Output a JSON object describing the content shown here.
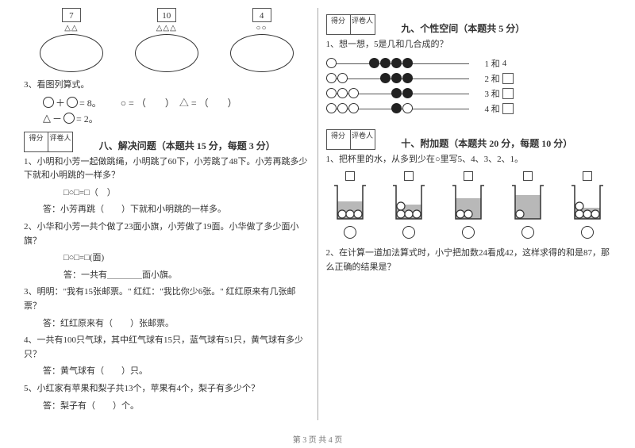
{
  "footer": {
    "text": "第 3 页 共 4 页"
  },
  "scorebox": {
    "col1": "得分",
    "col2": "评卷人"
  },
  "left": {
    "ovals": [
      {
        "num": "7",
        "shapes": "△△"
      },
      {
        "num": "10",
        "shapes": "△△△"
      },
      {
        "num": "4",
        "shapes": "○○"
      }
    ],
    "q3": {
      "label": "3、看图列算式。",
      "eq1_rhs": "= 8。",
      "eq2_rhs": "= 2。",
      "sym_row": "○ = （　　）　△ = （　　）"
    },
    "section8": {
      "title": "八、解决问题（本题共 15 分，每题 3 分）",
      "q1": "1、小明和小芳一起做跳绳，小明跳了60下，小芳跳了48下。小芳再跳多少下就和小明跳的一样多？",
      "q1_expr": "□○□=□（　）",
      "q1_ans": "答：小芳再跳（　　）下就和小明跳的一样多。",
      "q2": "2、小华和小芳一共个做了23面小旗，小芳做了19面。小华做了多少面小旗？",
      "q2_expr": "□○□=□(面)",
      "q2_ans": "答：一共有＿＿＿＿面小旗。",
      "q3": "3、明明：\"我有15张邮票。\" 红红：\"我比你少6张。\" 红红原来有几张邮票？",
      "q3_ans": "答：红红原来有（　　）张邮票。",
      "q4": "4、一共有100只气球，其中红气球有15只，蓝气球有51只，黄气球有多少只？",
      "q4_ans": "答：黄气球有（　　）只。",
      "q5": "5、小红家有苹果和梨子共13个，苹果有4个，梨子有多少个？",
      "q5_ans": "答：梨子有（　　）个。"
    }
  },
  "right": {
    "section9": {
      "title": "九、个性空间（本题共 5 分）",
      "q1": "1、想一想，5是几和几合成的？",
      "rows": [
        {
          "left_open": 1,
          "right_filled": 4,
          "right_open": 0,
          "label_pre": "1 和 ",
          "label_post": "4"
        },
        {
          "left_open": 2,
          "right_filled": 3,
          "right_open": 0,
          "label_pre": "2 和 ",
          "label_post": ""
        },
        {
          "left_open": 3,
          "right_filled": 2,
          "right_open": 0,
          "label_pre": "3 和 ",
          "label_post": ""
        },
        {
          "left_open": 3,
          "right_filled": 1,
          "right_open": 1,
          "label_pre": "4 和 ",
          "label_post": ""
        }
      ]
    },
    "section10": {
      "title": "十、附加题（本题共 20 分，每题 10 分）",
      "q1": "1、把杯里的水，从多到少在○里写5、4、3、2、1。",
      "beakers": [
        {
          "fill_h": 22,
          "balls": 3
        },
        {
          "fill_h": 18,
          "balls": 4
        },
        {
          "fill_h": 26,
          "balls": 2
        },
        {
          "fill_h": 30,
          "balls": 1
        },
        {
          "fill_h": 14,
          "balls": 4
        }
      ],
      "q2": "2、在计算一道加法算式时，小宁把加数24看成42，这样求得的和是87，那么正确的结果是？"
    }
  },
  "style": {
    "colors": {
      "text": "#333333",
      "line": "#555555",
      "bead_fill": "#222222",
      "water": "#b8b8b8",
      "bg": "#ffffff"
    },
    "fontsizes": {
      "body": 11,
      "title": 12,
      "footer": 10
    }
  }
}
